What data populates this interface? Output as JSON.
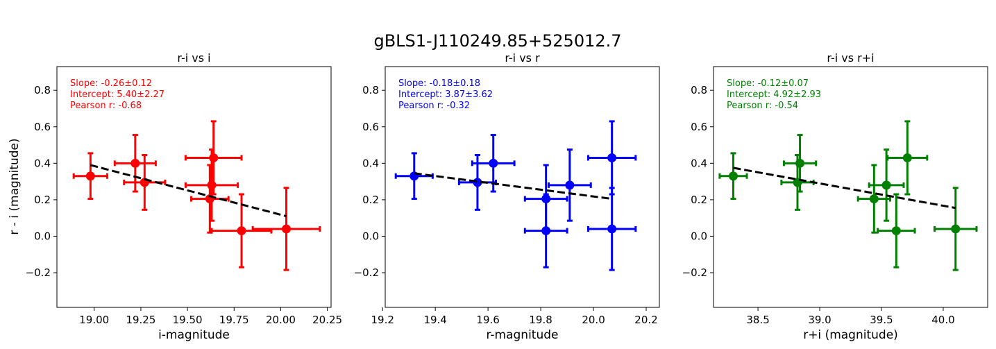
{
  "figure": {
    "suptitle": "gBLS1-J110249.85+525012.7",
    "ylabel": "r - i (magnitude)"
  },
  "chart_data": [
    {
      "type": "scatter",
      "title": "r-i vs i",
      "xlabel": "i-magnitude",
      "color": "#ff0000",
      "xlim": [
        18.8,
        20.27
      ],
      "ylim": [
        -0.39,
        0.93
      ],
      "xticks": [
        "19.00",
        "19.25",
        "19.50",
        "19.75",
        "20.00",
        "20.25"
      ],
      "xtick_values": [
        19.0,
        19.25,
        19.5,
        19.75,
        20.0,
        20.25
      ],
      "yticks": [
        "−0.2",
        "0.0",
        "0.2",
        "0.4",
        "0.6",
        "0.8"
      ],
      "ytick_values": [
        -0.2,
        0.0,
        0.2,
        0.4,
        0.6,
        0.8
      ],
      "annotation": [
        "Slope: -0.26±0.12",
        "Intercept: 5.40±2.27",
        "Pearson r: -0.68"
      ],
      "fit": {
        "x": [
          18.98,
          20.03
        ],
        "y": [
          0.39,
          0.11
        ]
      },
      "points": [
        {
          "x": 18.98,
          "y": 0.33,
          "xerr": 0.09,
          "yerr": 0.125
        },
        {
          "x": 19.22,
          "y": 0.4,
          "xerr": 0.11,
          "yerr": 0.155
        },
        {
          "x": 19.27,
          "y": 0.295,
          "xerr": 0.11,
          "yerr": 0.15
        },
        {
          "x": 19.62,
          "y": 0.205,
          "xerr": 0.1,
          "yerr": 0.185
        },
        {
          "x": 19.63,
          "y": 0.28,
          "xerr": 0.14,
          "yerr": 0.195
        },
        {
          "x": 19.64,
          "y": 0.43,
          "xerr": 0.15,
          "yerr": 0.2
        },
        {
          "x": 19.79,
          "y": 0.03,
          "xerr": 0.16,
          "yerr": 0.2
        },
        {
          "x": 20.03,
          "y": 0.04,
          "xerr": 0.18,
          "yerr": 0.225
        }
      ]
    },
    {
      "type": "scatter",
      "title": "r-i vs r",
      "xlabel": "r-magnitude",
      "color": "#0000ff",
      "xlim": [
        19.21,
        20.25
      ],
      "ylim": [
        -0.39,
        0.93
      ],
      "xticks": [
        "19.2",
        "19.4",
        "19.6",
        "19.8",
        "20.0",
        "20.2"
      ],
      "xtick_values": [
        19.2,
        19.4,
        19.6,
        19.8,
        20.0,
        20.2
      ],
      "yticks": [
        "−0.2",
        "0.0",
        "0.2",
        "0.4",
        "0.6",
        "0.8"
      ],
      "ytick_values": [
        -0.2,
        0.0,
        0.2,
        0.4,
        0.6,
        0.8
      ],
      "annotation": [
        "Slope: -0.18±0.18",
        "Intercept: 3.87±3.62",
        "Pearson r: -0.32"
      ],
      "fit": {
        "x": [
          19.32,
          20.07
        ],
        "y": [
          0.345,
          0.205
        ]
      },
      "points": [
        {
          "x": 19.32,
          "y": 0.33,
          "xerr": 0.07,
          "yerr": 0.125
        },
        {
          "x": 19.56,
          "y": 0.295,
          "xerr": 0.07,
          "yerr": 0.15
        },
        {
          "x": 19.62,
          "y": 0.4,
          "xerr": 0.08,
          "yerr": 0.155
        },
        {
          "x": 19.82,
          "y": 0.205,
          "xerr": 0.08,
          "yerr": 0.185
        },
        {
          "x": 19.82,
          "y": 0.03,
          "xerr": 0.08,
          "yerr": 0.2
        },
        {
          "x": 19.91,
          "y": 0.28,
          "xerr": 0.08,
          "yerr": 0.195
        },
        {
          "x": 20.07,
          "y": 0.43,
          "xerr": 0.09,
          "yerr": 0.2
        },
        {
          "x": 20.07,
          "y": 0.04,
          "xerr": 0.09,
          "yerr": 0.225
        }
      ]
    },
    {
      "type": "scatter",
      "title": "r-i vs r+i",
      "xlabel": "r+i (magnitude)",
      "color": "#008000",
      "xlim": [
        38.14,
        40.36
      ],
      "ylim": [
        -0.39,
        0.93
      ],
      "xticks": [
        "38.5",
        "39.0",
        "39.5",
        "40.0"
      ],
      "xtick_values": [
        38.5,
        39.0,
        39.5,
        40.0
      ],
      "yticks": [
        "−0.2",
        "0.0",
        "0.2",
        "0.4",
        "0.6",
        "0.8"
      ],
      "ytick_values": [
        -0.2,
        0.0,
        0.2,
        0.4,
        0.6,
        0.8
      ],
      "annotation": [
        "Slope: -0.12±0.07",
        "Intercept: 4.92±2.93",
        "Pearson r: -0.54"
      ],
      "fit": {
        "x": [
          38.3,
          40.1
        ],
        "y": [
          0.375,
          0.155
        ]
      },
      "points": [
        {
          "x": 38.3,
          "y": 0.33,
          "xerr": 0.11,
          "yerr": 0.125
        },
        {
          "x": 38.82,
          "y": 0.295,
          "xerr": 0.13,
          "yerr": 0.15
        },
        {
          "x": 38.84,
          "y": 0.4,
          "xerr": 0.13,
          "yerr": 0.155
        },
        {
          "x": 39.44,
          "y": 0.205,
          "xerr": 0.13,
          "yerr": 0.185
        },
        {
          "x": 39.54,
          "y": 0.28,
          "xerr": 0.14,
          "yerr": 0.195
        },
        {
          "x": 39.62,
          "y": 0.03,
          "xerr": 0.15,
          "yerr": 0.2
        },
        {
          "x": 39.71,
          "y": 0.43,
          "xerr": 0.16,
          "yerr": 0.2
        },
        {
          "x": 40.1,
          "y": 0.04,
          "xerr": 0.17,
          "yerr": 0.225
        }
      ]
    }
  ]
}
